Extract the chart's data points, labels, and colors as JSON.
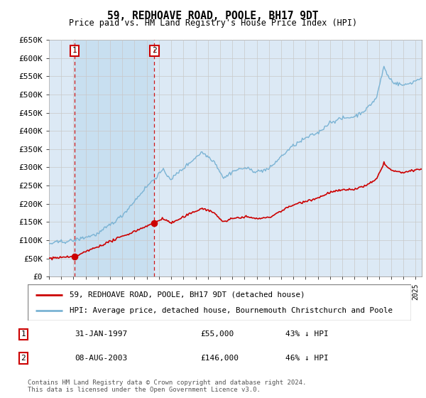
{
  "title": "59, REDHOAVE ROAD, POOLE, BH17 9DT",
  "subtitle": "Price paid vs. HM Land Registry's House Price Index (HPI)",
  "legend_line1": "59, REDHOAVE ROAD, POOLE, BH17 9DT (detached house)",
  "legend_line2": "HPI: Average price, detached house, Bournemouth Christchurch and Poole",
  "footnote": "Contains HM Land Registry data © Crown copyright and database right 2024.\nThis data is licensed under the Open Government Licence v3.0.",
  "sale1_date": "31-JAN-1997",
  "sale1_price": 55000,
  "sale1_label": "43% ↓ HPI",
  "sale2_date": "08-AUG-2003",
  "sale2_price": 146000,
  "sale2_label": "46% ↓ HPI",
  "ylim": [
    0,
    650000
  ],
  "xlim_start": 1995.0,
  "xlim_end": 2025.5,
  "sale1_x": 1997.08,
  "sale2_x": 2003.62,
  "hpi_color": "#7ab3d4",
  "price_color": "#cc0000",
  "bg_color": "#dce9f5",
  "shade_color": "#c8dff0",
  "plot_bg": "#ffffff",
  "grid_color": "#c8c8c8",
  "marker_color": "#cc0000"
}
